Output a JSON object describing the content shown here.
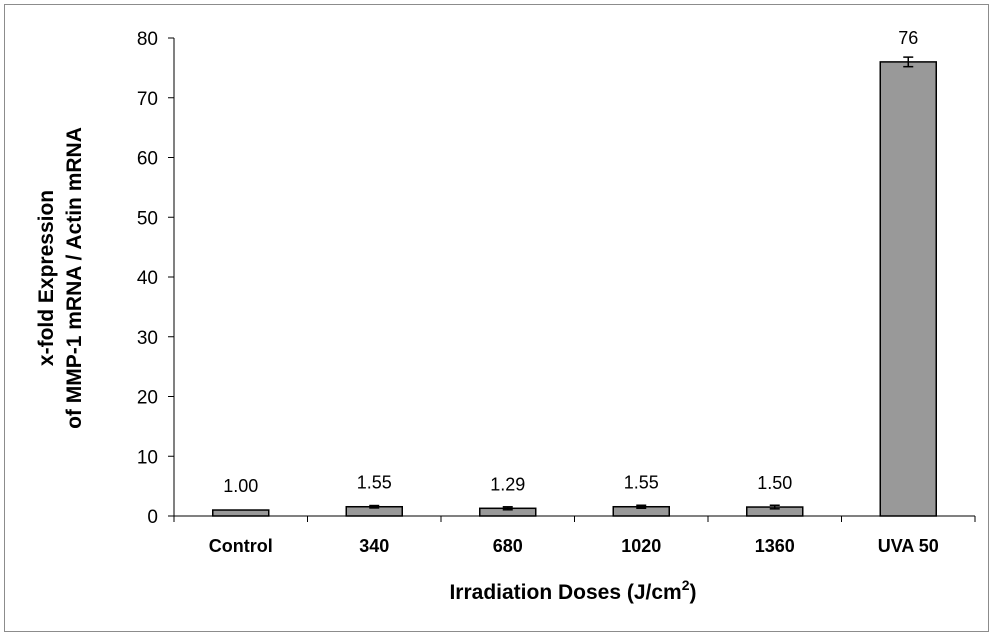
{
  "chart_data": {
    "type": "bar",
    "categories": [
      "Control",
      "340",
      "680",
      "1020",
      "1360",
      "UVA 50"
    ],
    "values": [
      1.0,
      1.55,
      1.29,
      1.55,
      1.5,
      76
    ],
    "errors": [
      0,
      0.2,
      0.25,
      0.25,
      0.3,
      0.8
    ],
    "data_labels": [
      "1.00",
      "1.55",
      "1.29",
      "1.55",
      "1.50",
      "76"
    ],
    "xlabel": "Irradiation Doses (J/cm",
    "xlabel_superscript": "2",
    "xlabel_suffix": ")",
    "ylabel_line1": "x-fold Expression",
    "ylabel_line2": "of MMP-1 mRNA / Actin mRNA",
    "ylim": [
      0,
      80
    ],
    "yticks": [
      0,
      10,
      20,
      30,
      40,
      50,
      60,
      70,
      80
    ],
    "grid": false,
    "legend": "none",
    "colors": {
      "bar_fill": "#999999",
      "bar_stroke": "#000000"
    }
  }
}
